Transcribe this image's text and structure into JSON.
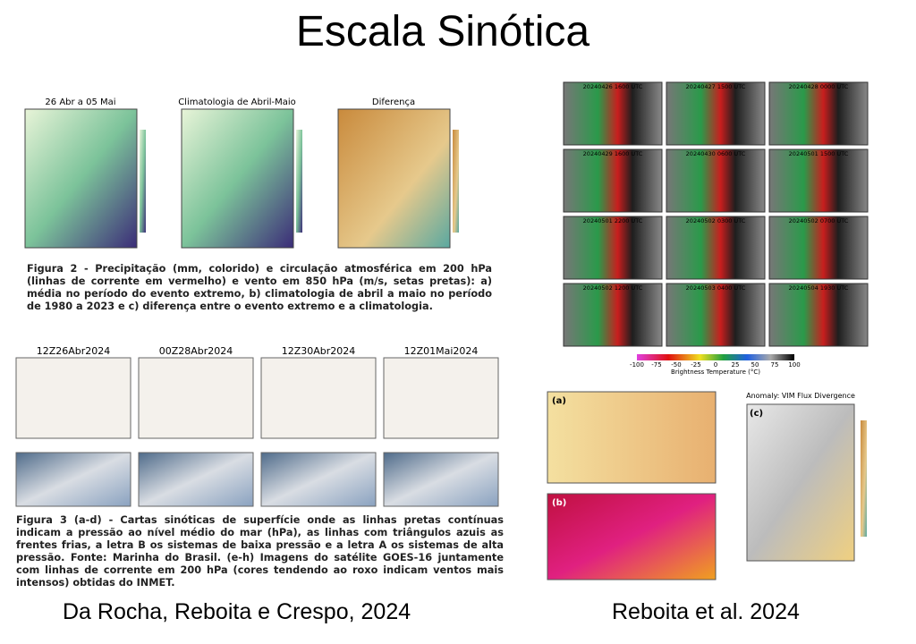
{
  "title": "Escala Sinótica",
  "left": {
    "figure2": {
      "panels": [
        "26 Abr a 05 Mai",
        "Climatologia de Abril-Maio",
        "Diferença"
      ],
      "caption": "Figura 2 - Precipitação (mm, colorido) e circulação atmosférica em 200 hPa (linhas de corrente em vermelho) e vento em 850 hPa (m/s, setas pretas): a) média no período do evento extremo, b) climatologia de abril a maio no período de 1980 a 2023 e c) diferença entre o evento extremo e a climatologia."
    },
    "figure3": {
      "panels": [
        "12Z26Abr2024",
        "00Z28Abr2024",
        "12Z30Abr2024",
        "12Z01Mai2024"
      ],
      "caption": "Figura 3 (a-d) - Cartas sinóticas de superfície onde as linhas pretas contínuas indicam a pressão ao nível médio do mar (hPa), as linhas com triângulos azuis as frentes frias, a letra B os sistemas de baixa pressão e a letra A os sistemas de alta pressão. Fonte: Marinha do Brasil. (e-h) Imagens do satélite GOES-16 juntamente com linhas de corrente em 200 hPa (cores tendendo ao roxo indicam ventos mais intensos) obtidas do INMET."
    },
    "credit": "Da Rocha, Reboita e Crespo, 2024"
  },
  "right": {
    "goes": {
      "panels": [
        "20240426 1600 UTC",
        "20240427 1500 UTC",
        "20240428 0000 UTC",
        "20240429 1600 UTC",
        "20240430 0600 UTC",
        "20240501 1500 UTC",
        "20240501 2200 UTC",
        "20240502 0300 UTC",
        "20240502 0700 UTC",
        "20240502 1200 UTC",
        "20240503 0400 UTC",
        "20240504 1930 UTC"
      ],
      "colorbar_ticks": [
        "-100",
        "-75",
        "-50",
        "-25",
        "0",
        "25",
        "50",
        "75",
        "100"
      ],
      "colorbar_label": "Brightness Temperature (°C)"
    },
    "vim_title": "Anomaly: VIM Flux Divergence",
    "credit": "Reboita et al. 2024"
  }
}
